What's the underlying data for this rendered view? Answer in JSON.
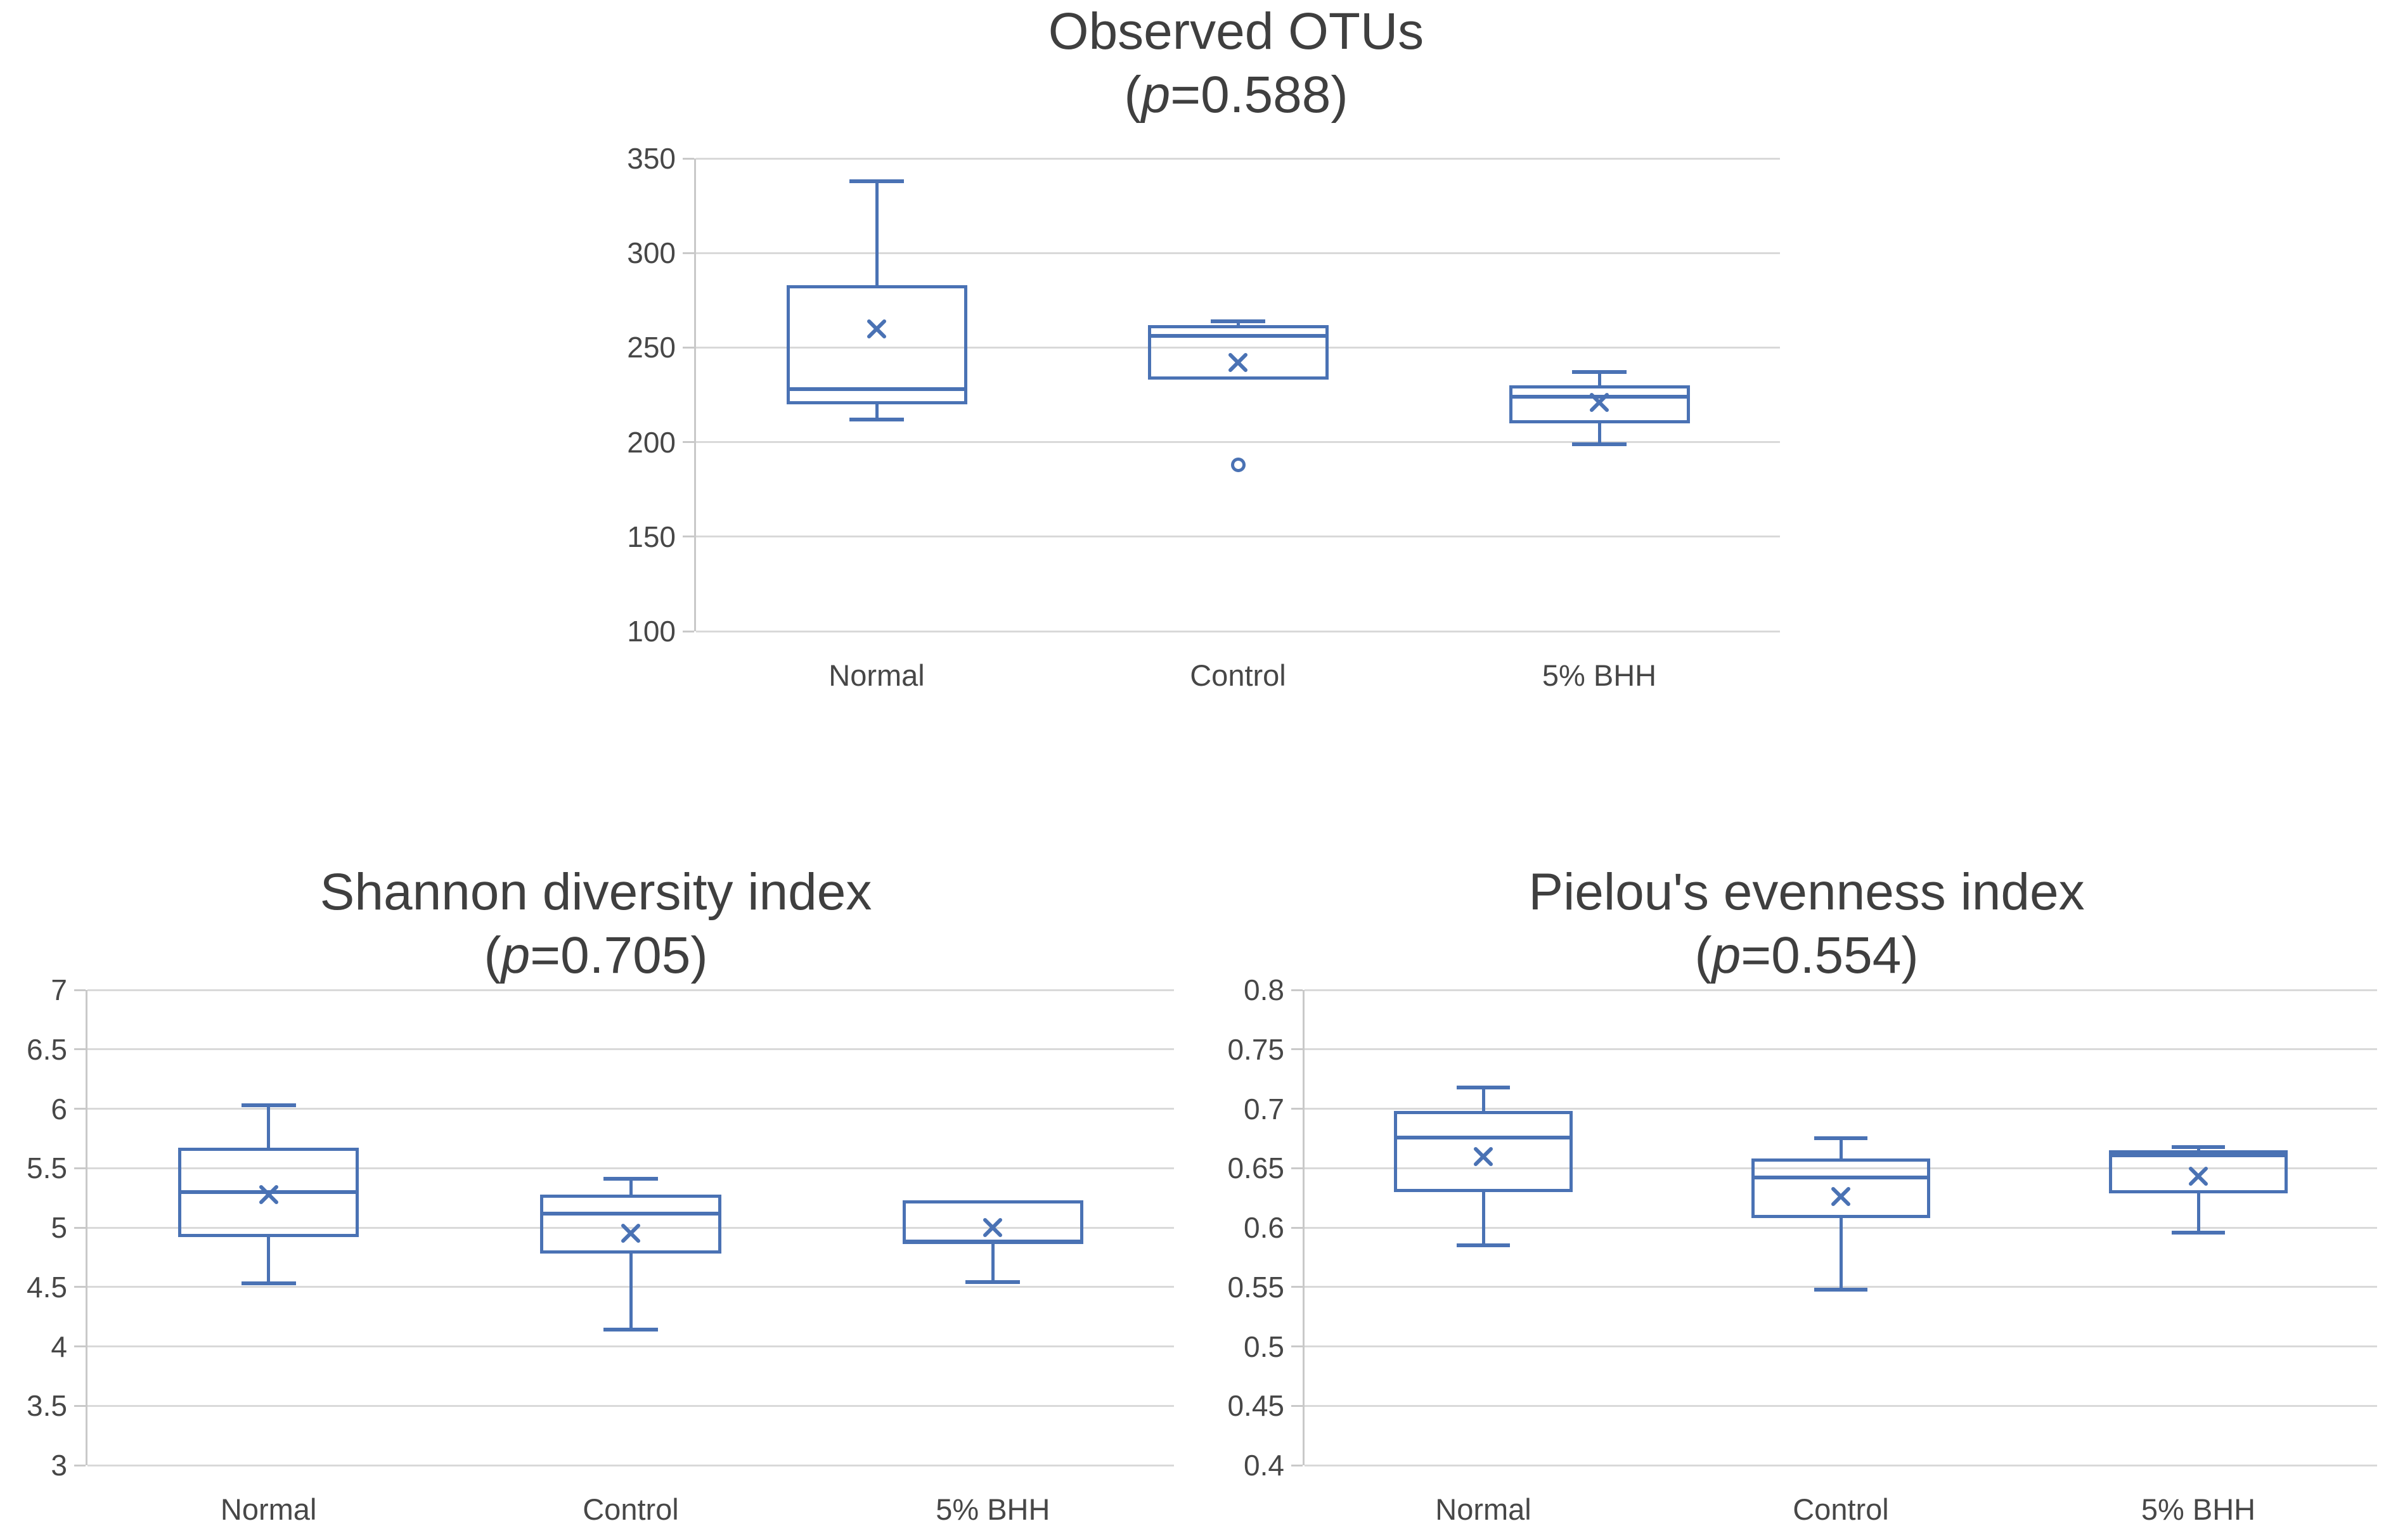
{
  "figure": {
    "background": "#ffffff",
    "accent_color": "#4a72b4",
    "gridline_color": "#d9d9d9",
    "axis_line_color": "#c9c9c9",
    "text_color": "#474747",
    "title_color": "#3f3f3f"
  },
  "chart_data": [
    {
      "id": "observed-otus",
      "type": "box",
      "title": "Observed OTUs",
      "p_label": "(p=0.588)",
      "p_prefix": "(",
      "p_var": "p",
      "p_suffix": "=0.588)",
      "categories": [
        "Normal",
        "Control",
        "5% BHH"
      ],
      "y_axis": {
        "min": 100,
        "max": 350,
        "step": 50,
        "tick_labels": [
          "350",
          "300",
          "250",
          "200",
          "150",
          "100"
        ]
      },
      "grid": true,
      "legend": "none",
      "series": [
        {
          "category": "Normal",
          "whisker_low": 212,
          "q1": 220,
          "median": 228,
          "mean": 260,
          "q3": 283,
          "whisker_high": 338,
          "outliers": []
        },
        {
          "category": "Control",
          "whisker_low": null,
          "q1": 233,
          "median": 256,
          "mean": 242,
          "q3": 262,
          "whisker_high": 264,
          "outliers": [
            188
          ]
        },
        {
          "category": "5% BHH",
          "whisker_low": 199,
          "q1": 210,
          "median": 224,
          "mean": 221,
          "q3": 230,
          "whisker_high": 237,
          "outliers": []
        }
      ]
    },
    {
      "id": "shannon-diversity",
      "type": "box",
      "title": "Shannon diversity index",
      "p_label": "(p=0.705)",
      "p_prefix": "(",
      "p_var": "p",
      "p_suffix": "=0.705)",
      "categories": [
        "Normal",
        "Control",
        "5% BHH"
      ],
      "y_axis": {
        "min": 3,
        "max": 7,
        "step": 0.5,
        "tick_labels": [
          "7",
          "6.5",
          "6",
          "5.5",
          "5",
          "4.5",
          "4",
          "3.5",
          "3"
        ]
      },
      "grid": true,
      "legend": "none",
      "series": [
        {
          "category": "Normal",
          "whisker_low": 4.53,
          "q1": 4.92,
          "median": 5.3,
          "mean": 5.28,
          "q3": 5.67,
          "whisker_high": 6.03,
          "outliers": []
        },
        {
          "category": "Control",
          "whisker_low": 4.14,
          "q1": 4.78,
          "median": 5.12,
          "mean": 4.95,
          "q3": 5.28,
          "whisker_high": 5.41,
          "outliers": []
        },
        {
          "category": "5% BHH",
          "whisker_low": 4.54,
          "q1": 4.87,
          "median": 4.88,
          "mean": 5.0,
          "q3": 5.23,
          "whisker_high": null,
          "outliers": []
        }
      ]
    },
    {
      "id": "pielou-evenness",
      "type": "box",
      "title": "Pielou's evenness index",
      "p_label": "(p=0.554)",
      "p_prefix": "(",
      "p_var": "p",
      "p_suffix": "=0.554)",
      "categories": [
        "Normal",
        "Control",
        "5% BHH"
      ],
      "y_axis": {
        "min": 0.4,
        "max": 0.8,
        "step": 0.05,
        "tick_labels": [
          "0.8",
          "0.75",
          "0.7",
          "0.65",
          "0.6",
          "0.55",
          "0.5",
          "0.45",
          "0.4"
        ]
      },
      "grid": true,
      "legend": "none",
      "series": [
        {
          "category": "Normal",
          "whisker_low": 0.585,
          "q1": 0.63,
          "median": 0.676,
          "mean": 0.66,
          "q3": 0.698,
          "whisker_high": 0.718,
          "outliers": []
        },
        {
          "category": "Control",
          "whisker_low": 0.548,
          "q1": 0.608,
          "median": 0.642,
          "mean": 0.626,
          "q3": 0.658,
          "whisker_high": 0.675,
          "outliers": []
        },
        {
          "category": "5% BHH",
          "whisker_low": 0.596,
          "q1": 0.629,
          "median": 0.661,
          "mean": 0.643,
          "q3": 0.665,
          "whisker_high": 0.668,
          "outliers": []
        }
      ]
    }
  ]
}
